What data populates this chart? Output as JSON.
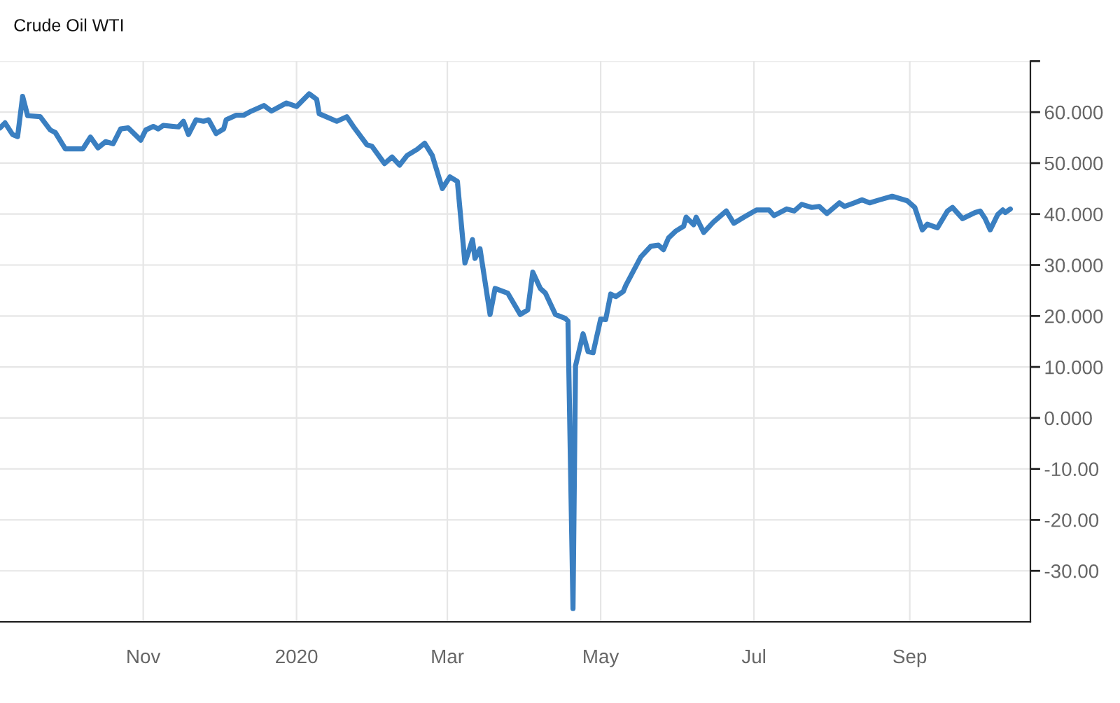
{
  "chart_data": {
    "type": "line",
    "title": "Crude Oil WTI",
    "x": [
      "2019-09-05",
      "2019-09-07",
      "2019-09-10",
      "2019-09-12",
      "2019-09-14",
      "2019-09-16",
      "2019-09-21",
      "2019-09-25",
      "2019-09-27",
      "2019-10-01",
      "2019-10-08",
      "2019-10-11",
      "2019-10-14",
      "2019-10-17",
      "2019-10-20",
      "2019-10-23",
      "2019-10-26",
      "2019-10-31",
      "2019-11-02",
      "2019-11-05",
      "2019-11-07",
      "2019-11-09",
      "2019-11-15",
      "2019-11-17",
      "2019-11-19",
      "2019-11-22",
      "2019-11-25",
      "2019-11-27",
      "2019-11-30",
      "2019-12-03",
      "2019-12-04",
      "2019-12-08",
      "2019-12-11",
      "2019-12-14",
      "2019-12-19",
      "2019-12-22",
      "2019-12-28",
      "2020-01-01",
      "2020-01-06",
      "2020-01-09",
      "2020-01-10",
      "2020-01-17",
      "2020-01-21",
      "2020-01-24",
      "2020-01-29",
      "2020-01-31",
      "2020-02-05",
      "2020-02-08",
      "2020-02-11",
      "2020-02-14",
      "2020-02-18",
      "2020-02-21",
      "2020-02-24",
      "2020-02-28",
      "2020-03-02",
      "2020-03-05",
      "2020-03-08",
      "2020-03-11",
      "2020-03-12",
      "2020-03-14",
      "2020-03-18",
      "2020-03-20",
      "2020-03-25",
      "2020-03-30",
      "2020-04-02",
      "2020-04-04",
      "2020-04-07",
      "2020-04-09",
      "2020-04-13",
      "2020-04-17",
      "2020-04-18",
      "2020-04-20",
      "2020-04-21",
      "2020-04-24",
      "2020-04-26",
      "2020-04-28",
      "2020-05-01",
      "2020-05-03",
      "2020-05-05",
      "2020-05-07",
      "2020-05-10",
      "2020-05-11",
      "2020-05-17",
      "2020-05-21",
      "2020-05-24",
      "2020-05-26",
      "2020-05-28",
      "2020-05-31",
      "2020-06-03",
      "2020-06-04",
      "2020-06-07",
      "2020-06-08",
      "2020-06-11",
      "2020-06-15",
      "2020-06-20",
      "2020-06-23",
      "2020-06-27",
      "2020-07-02",
      "2020-07-07",
      "2020-07-09",
      "2020-07-14",
      "2020-07-17",
      "2020-07-20",
      "2020-07-24",
      "2020-07-27",
      "2020-07-30",
      "2020-08-04",
      "2020-08-06",
      "2020-08-10",
      "2020-08-13",
      "2020-08-16",
      "2020-08-20",
      "2020-08-25",
      "2020-08-31",
      "2020-09-03",
      "2020-09-06",
      "2020-09-08",
      "2020-09-12",
      "2020-09-16",
      "2020-09-18",
      "2020-09-22",
      "2020-09-27",
      "2020-09-29",
      "2020-10-01",
      "2020-10-03",
      "2020-10-06",
      "2020-10-08",
      "2020-10-09",
      "2020-10-11"
    ],
    "series": [
      {
        "color": "#3a7fc1",
        "values": [
          56.9,
          57.9,
          55.6,
          55.2,
          63.1,
          59.3,
          59.1,
          56.5,
          56.0,
          52.8,
          52.8,
          55.1,
          53.0,
          54.2,
          53.8,
          56.7,
          56.9,
          54.5,
          56.5,
          57.2,
          56.7,
          57.4,
          57.1,
          58.2,
          55.6,
          58.5,
          58.2,
          58.5,
          55.8,
          56.7,
          58.5,
          59.4,
          59.4,
          60.2,
          61.3,
          60.2,
          61.8,
          61.1,
          63.6,
          62.5,
          59.7,
          58.2,
          59.1,
          56.9,
          53.6,
          53.3,
          49.9,
          51.2,
          49.6,
          51.5,
          52.7,
          53.9,
          51.5,
          45.0,
          47.3,
          46.4,
          30.4,
          35.0,
          31.3,
          33.2,
          20.3,
          25.4,
          24.5,
          20.3,
          21.2,
          28.6,
          25.4,
          24.5,
          20.3,
          19.5,
          19.0,
          -37.4,
          10.2,
          16.5,
          13.0,
          12.8,
          19.4,
          19.3,
          24.3,
          23.8,
          24.8,
          26.0,
          31.6,
          33.7,
          33.9,
          33.0,
          35.3,
          36.7,
          37.6,
          39.4,
          37.9,
          39.4,
          36.4,
          38.5,
          40.6,
          38.2,
          39.4,
          40.8,
          40.8,
          39.7,
          41.0,
          40.6,
          41.9,
          41.3,
          41.5,
          40.1,
          42.2,
          41.5,
          42.2,
          42.8,
          42.2,
          42.8,
          43.5,
          42.6,
          41.3,
          36.9,
          38.0,
          37.3,
          40.6,
          41.3,
          39.1,
          40.3,
          40.6,
          39.1,
          36.9,
          39.9,
          40.8,
          40.3,
          41.0
        ]
      }
    ],
    "xlim": [
      "2019-09-05",
      "2020-10-19"
    ],
    "xticks": [
      {
        "value": "2019-11-01",
        "label": "Nov"
      },
      {
        "value": "2020-01-01",
        "label": "2020"
      },
      {
        "value": "2020-03-01",
        "label": "Mar"
      },
      {
        "value": "2020-05-01",
        "label": "May"
      },
      {
        "value": "2020-07-01",
        "label": "Jul"
      },
      {
        "value": "2020-09-01",
        "label": "Sep"
      }
    ],
    "ylim": [
      -40,
      70
    ],
    "yticks": [
      {
        "value": -30,
        "label": "-30.00"
      },
      {
        "value": -20,
        "label": "-20.00"
      },
      {
        "value": -10,
        "label": "-10.00"
      },
      {
        "value": 0,
        "label": "0.000"
      },
      {
        "value": 10,
        "label": "10.000"
      },
      {
        "value": 20,
        "label": "20.000"
      },
      {
        "value": 30,
        "label": "30.000"
      },
      {
        "value": 40,
        "label": "40.000"
      },
      {
        "value": 50,
        "label": "50.000"
      },
      {
        "value": 60,
        "label": "60.000"
      },
      {
        "value": 70,
        "label": null
      }
    ],
    "grid": true,
    "marker": "none",
    "line_style": "solid"
  }
}
